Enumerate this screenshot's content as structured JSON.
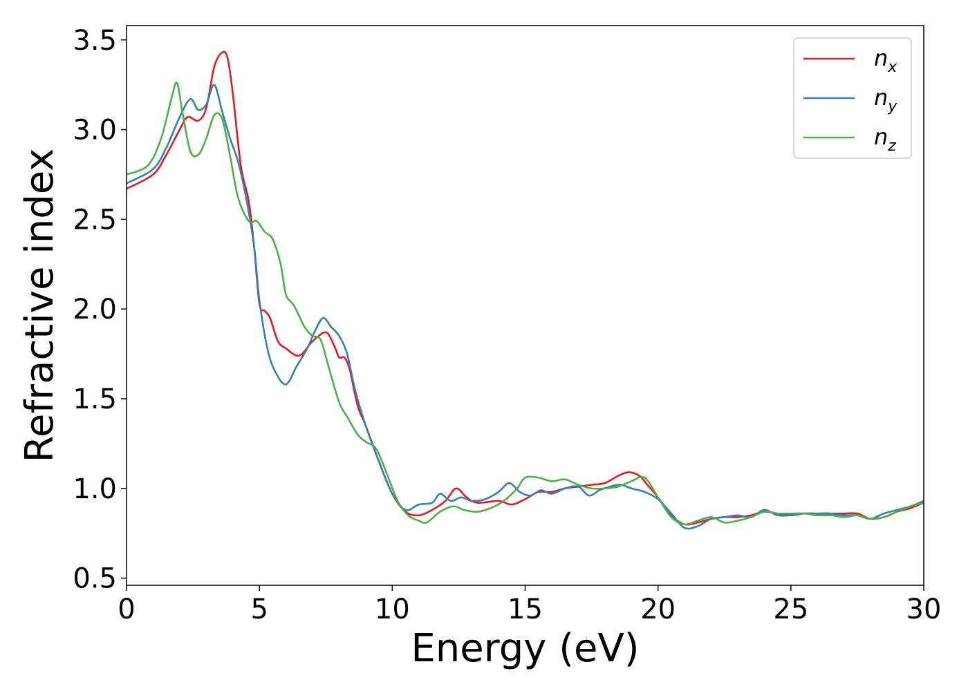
{
  "chart_data": {
    "type": "line",
    "title": "",
    "xlabel": "Energy (eV)",
    "ylabel": "Refractive index",
    "xlim": [
      0,
      30
    ],
    "ylim": [
      0.46,
      3.58
    ],
    "xticks": [
      0,
      5,
      10,
      15,
      20,
      25,
      30
    ],
    "xtick_labels": [
      "0",
      "5",
      "10",
      "15",
      "20",
      "25",
      "30"
    ],
    "yticks": [
      0.5,
      1.0,
      1.5,
      2.0,
      2.5,
      3.0,
      3.5
    ],
    "ytick_labels": [
      "0.5",
      "1.0",
      "1.5",
      "2.0",
      "2.5",
      "3.0",
      "3.5"
    ],
    "grid": false,
    "legend": "top-right",
    "series": [
      {
        "name": "n",
        "subscript": "x",
        "color": "#e41a1c",
        "x": [
          0,
          1,
          1.5,
          2,
          2.3,
          2.7,
          3,
          3.3,
          3.6,
          3.8,
          4.0,
          4.3,
          4.6,
          4.8,
          5.0,
          5.2,
          5.4,
          5.7,
          6.0,
          6.5,
          7.0,
          7.5,
          7.8,
          8.0,
          8.2,
          8.4,
          8.7,
          9.0,
          9.5,
          10.0,
          10.5,
          11.0,
          11.5,
          12.0,
          12.4,
          12.8,
          13.2,
          14.0,
          14.5,
          15.0,
          15.5,
          16.0,
          16.5,
          17.0,
          17.5,
          18.0,
          18.5,
          18.9,
          19.3,
          19.6,
          20.0,
          20.5,
          21.0,
          21.5,
          22.0,
          22.5,
          23.0,
          23.5,
          24.0,
          24.5,
          25.0,
          25.5,
          26.0,
          26.5,
          27.0,
          27.5,
          28.0,
          28.5,
          29.0,
          29.5,
          30.0
        ],
        "y": [
          2.67,
          2.75,
          2.86,
          3.0,
          3.07,
          3.05,
          3.12,
          3.35,
          3.43,
          3.4,
          3.2,
          2.8,
          2.6,
          2.35,
          2.03,
          1.99,
          1.95,
          1.82,
          1.78,
          1.74,
          1.82,
          1.87,
          1.8,
          1.73,
          1.73,
          1.66,
          1.46,
          1.35,
          1.15,
          0.97,
          0.87,
          0.85,
          0.88,
          0.93,
          1.0,
          0.95,
          0.92,
          0.93,
          0.91,
          0.94,
          0.98,
          0.98,
          1.0,
          1.01,
          1.02,
          1.03,
          1.07,
          1.09,
          1.07,
          1.02,
          0.95,
          0.85,
          0.8,
          0.81,
          0.83,
          0.84,
          0.84,
          0.85,
          0.87,
          0.86,
          0.85,
          0.86,
          0.86,
          0.86,
          0.86,
          0.86,
          0.83,
          0.84,
          0.87,
          0.89,
          0.92
        ]
      },
      {
        "name": "n",
        "subscript": "y",
        "color": "#377eb8",
        "x": [
          0,
          1,
          1.5,
          2,
          2.4,
          2.7,
          3.0,
          3.3,
          3.6,
          3.9,
          4.2,
          4.5,
          4.8,
          5.0,
          5.3,
          5.6,
          6.0,
          6.4,
          6.8,
          7.1,
          7.4,
          7.7,
          8.0,
          8.3,
          8.6,
          9.0,
          9.5,
          10.0,
          10.5,
          11.0,
          11.5,
          11.8,
          12.2,
          12.6,
          13.0,
          13.5,
          14.0,
          14.4,
          14.8,
          15.2,
          15.6,
          16.0,
          16.5,
          17.0,
          17.4,
          17.8,
          18.2,
          18.6,
          19.0,
          19.5,
          20.0,
          20.5,
          21.0,
          21.5,
          22.0,
          22.5,
          23.0,
          23.5,
          24.0,
          24.5,
          25.0,
          25.5,
          26.0,
          26.5,
          27.0,
          27.5,
          28.0,
          28.5,
          29.0,
          29.5,
          30.0
        ],
        "y": [
          2.7,
          2.78,
          2.9,
          3.07,
          3.17,
          3.11,
          3.14,
          3.25,
          3.1,
          2.95,
          2.82,
          2.62,
          2.35,
          2.05,
          1.78,
          1.65,
          1.58,
          1.68,
          1.78,
          1.88,
          1.95,
          1.9,
          1.85,
          1.75,
          1.55,
          1.35,
          1.15,
          0.97,
          0.88,
          0.91,
          0.92,
          0.97,
          0.93,
          0.95,
          0.93,
          0.94,
          0.98,
          1.03,
          0.98,
          0.96,
          0.99,
          0.97,
          1.0,
          1.01,
          0.96,
          0.99,
          1.01,
          1.02,
          1.0,
          0.98,
          0.94,
          0.86,
          0.78,
          0.79,
          0.83,
          0.84,
          0.85,
          0.84,
          0.88,
          0.85,
          0.85,
          0.86,
          0.86,
          0.86,
          0.85,
          0.85,
          0.83,
          0.86,
          0.88,
          0.9,
          0.93
        ]
      },
      {
        "name": "n",
        "subscript": "z",
        "color": "#4daf4a",
        "x": [
          0,
          0.8,
          1.3,
          1.7,
          1.9,
          2.1,
          2.4,
          2.7,
          3.0,
          3.3,
          3.6,
          3.9,
          4.2,
          4.6,
          4.9,
          5.2,
          5.5,
          5.8,
          6.0,
          6.3,
          6.7,
          7.0,
          7.3,
          7.6,
          8.0,
          8.3,
          8.7,
          9.0,
          9.4,
          9.8,
          10.2,
          10.6,
          11.0,
          11.3,
          11.8,
          12.3,
          12.7,
          13.2,
          13.7,
          14.2,
          14.7,
          15.0,
          15.5,
          16.0,
          16.5,
          17.0,
          17.5,
          18.0,
          18.5,
          19.0,
          19.5,
          20.0,
          20.5,
          21.0,
          21.5,
          22.0,
          22.5,
          23.0,
          23.5,
          24.0,
          24.5,
          25.0,
          25.5,
          26.0,
          26.5,
          27.0,
          27.5,
          28.0,
          28.5,
          29.0,
          29.5,
          30.0
        ],
        "y": [
          2.75,
          2.8,
          2.95,
          3.18,
          3.26,
          3.1,
          2.88,
          2.86,
          2.95,
          3.08,
          3.06,
          2.85,
          2.62,
          2.49,
          2.49,
          2.43,
          2.39,
          2.25,
          2.08,
          2.02,
          1.9,
          1.85,
          1.83,
          1.68,
          1.48,
          1.4,
          1.3,
          1.26,
          1.22,
          1.08,
          0.93,
          0.85,
          0.82,
          0.81,
          0.87,
          0.9,
          0.88,
          0.87,
          0.89,
          0.93,
          1.0,
          1.06,
          1.06,
          1.04,
          1.05,
          1.02,
          1.0,
          1.0,
          1.01,
          1.04,
          1.06,
          0.95,
          0.84,
          0.8,
          0.82,
          0.84,
          0.81,
          0.82,
          0.84,
          0.87,
          0.86,
          0.86,
          0.86,
          0.85,
          0.85,
          0.84,
          0.85,
          0.83,
          0.84,
          0.87,
          0.9,
          0.92
        ]
      }
    ]
  }
}
